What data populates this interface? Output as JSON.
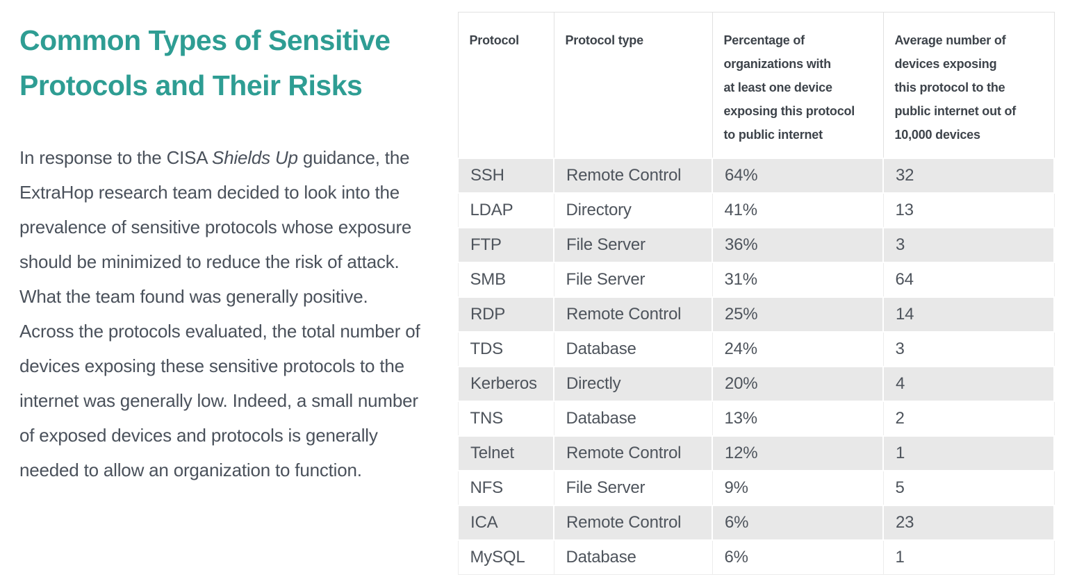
{
  "accent_color": "#2e9d93",
  "stripe_color": "#e8e8e8",
  "heading": {
    "title": "Common Types of Sensitive Protocols and Their Risks"
  },
  "paragraph": {
    "before_italic": "In response to the CISA ",
    "italic": "Shields Up",
    "after_italic": " guidance, the ExtraHop research team decided to look into the prevalence of sensitive protocols whose exposure should be minimized to reduce the risk of attack. What the team found was generally positive. Across the protocols evaluated, the total number of devices exposing these sensitive protocols to the internet was generally low. Indeed, a small number of exposed devices and protocols is generally needed to allow an organization to function."
  },
  "table": {
    "headers": [
      "Protocol",
      "Protocol type",
      "Percentage of\norganizations with\nat least one device\nexposing this protocol\nto public internet",
      "Average number of\ndevices exposing\nthis protocol to the\npublic internet out of\n10,000 devices"
    ],
    "rows": [
      {
        "protocol": "SSH",
        "type": "Remote Control",
        "pct": "64%",
        "avg": "32"
      },
      {
        "protocol": "LDAP",
        "type": "Directory",
        "pct": "41%",
        "avg": "13"
      },
      {
        "protocol": "FTP",
        "type": "File Server",
        "pct": "36%",
        "avg": "3"
      },
      {
        "protocol": "SMB",
        "type": "File Server",
        "pct": "31%",
        "avg": "64"
      },
      {
        "protocol": "RDP",
        "type": "Remote Control",
        "pct": "25%",
        "avg": "14"
      },
      {
        "protocol": "TDS",
        "type": "Database",
        "pct": "24%",
        "avg": "3"
      },
      {
        "protocol": "Kerberos",
        "type": "Directly",
        "pct": "20%",
        "avg": "4"
      },
      {
        "protocol": "TNS",
        "type": "Database",
        "pct": "13%",
        "avg": "2"
      },
      {
        "protocol": "Telnet",
        "type": "Remote Control",
        "pct": "12%",
        "avg": "1"
      },
      {
        "protocol": "NFS",
        "type": "File Server",
        "pct": "9%",
        "avg": "5"
      },
      {
        "protocol": "ICA",
        "type": "Remote Control",
        "pct": "6%",
        "avg": "23"
      },
      {
        "protocol": "MySQL",
        "type": "Database",
        "pct": "6%",
        "avg": "1"
      }
    ]
  }
}
